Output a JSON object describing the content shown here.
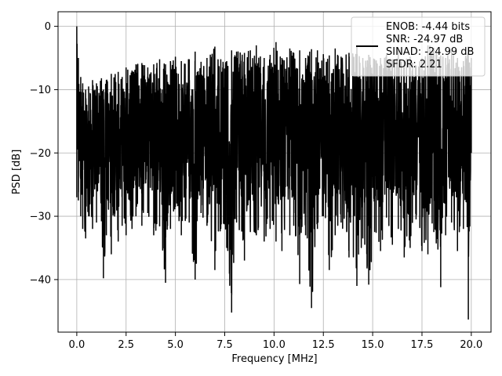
{
  "chart_data": {
    "type": "line",
    "title": "",
    "xlabel": "Frequency [MHz]",
    "ylabel": "PSD [dB]",
    "xlim": [
      -0.95,
      21.0
    ],
    "ylim": [
      -48.3,
      2.3
    ],
    "xticks": [
      0.0,
      2.5,
      5.0,
      7.5,
      10.0,
      12.5,
      15.0,
      17.5,
      20.0
    ],
    "xtick_labels": [
      "0.0",
      "2.5",
      "5.0",
      "7.5",
      "10.0",
      "12.5",
      "15.0",
      "17.5",
      "20.0"
    ],
    "yticks": [
      0,
      -10,
      -20,
      -30,
      -40
    ],
    "ytick_labels": [
      "0",
      "−10",
      "−20",
      "−30",
      "−40"
    ],
    "grid": true,
    "legend_position": "top-right",
    "legend_entries": [
      "ENOB: -4.44 bits",
      "SNR: -24.97 dB",
      "SINAD: -24.99 dB",
      "SFDR: 2.21"
    ],
    "series": [
      {
        "color": "#000000",
        "x": [
          0.0,
          0.08,
          0.2,
          0.3,
          0.45,
          0.6,
          0.8,
          1.0,
          1.25,
          1.35,
          1.5,
          1.75,
          2.1,
          2.3,
          2.5,
          2.8,
          3.0,
          3.3,
          3.6,
          3.9,
          4.2,
          4.5,
          4.75,
          5.0,
          5.3,
          5.7,
          6.0,
          6.3,
          6.6,
          7.0,
          7.3,
          7.6,
          7.85,
          8.1,
          8.5,
          8.8,
          9.1,
          9.5,
          9.8,
          10.1,
          10.4,
          10.8,
          11.0,
          11.3,
          11.6,
          11.9,
          12.2,
          12.5,
          12.8,
          13.1,
          13.4,
          13.8,
          14.2,
          14.5,
          14.8,
          15.1,
          15.4,
          15.7,
          16.0,
          16.3,
          16.6,
          16.9,
          17.2,
          17.5,
          17.8,
          18.1,
          18.45,
          18.7,
          19.0,
          19.3,
          19.6,
          19.85,
          20.0
        ],
        "upper": [
          0,
          -5,
          -8,
          -9,
          -10,
          -9.5,
          -8.5,
          -9,
          -8.2,
          -10,
          -8.5,
          -7.5,
          -7.2,
          -8,
          -6.5,
          -7,
          -6,
          -5.8,
          -6.5,
          -6,
          -5.2,
          -6,
          -5.5,
          -4.8,
          -5.5,
          -5.2,
          -4,
          -5.6,
          -5,
          -3.2,
          -5.2,
          -5.5,
          -3.8,
          -4,
          -4.2,
          -3.8,
          -3,
          -5,
          -4.5,
          -2.5,
          -5,
          -3.5,
          -4.2,
          -3.8,
          -5,
          -3.6,
          -3.8,
          -4.4,
          -4.6,
          -3.5,
          -4.8,
          -4.2,
          -3.2,
          -5,
          -4.5,
          -5.2,
          -5,
          -4.5,
          -5.2,
          -3.8,
          -5.4,
          -4.8,
          -6.2,
          -5,
          -3,
          -3.4,
          -4.6,
          -5,
          -3.8,
          -5,
          -5.5,
          -3.2,
          -5
        ],
        "lower": [
          -27,
          -27.5,
          -30,
          -32,
          -33.5,
          -30,
          -32,
          -31,
          -30.8,
          -39.8,
          -33,
          -36,
          -34,
          -31.5,
          -33,
          -32,
          -30,
          -31.5,
          -29.5,
          -33,
          -31.6,
          -40.5,
          -32,
          -28.5,
          -33,
          -31,
          -40,
          -29.5,
          -31.5,
          -38.5,
          -32,
          -35,
          -45.2,
          -31,
          -37,
          -32.5,
          -33,
          -34,
          -32,
          -34,
          -35.5,
          -33,
          -31.5,
          -40.7,
          -33,
          -44.5,
          -32,
          -30,
          -38.5,
          -33,
          -31,
          -36.5,
          -41,
          -33.5,
          -40.8,
          -32.5,
          -35.5,
          -30.2,
          -34.5,
          -32,
          -36.5,
          -35,
          -30.5,
          -35.5,
          -36,
          -32.5,
          -41.2,
          -33,
          -31,
          -35.5,
          -32,
          -46.3,
          -20
        ]
      }
    ]
  }
}
